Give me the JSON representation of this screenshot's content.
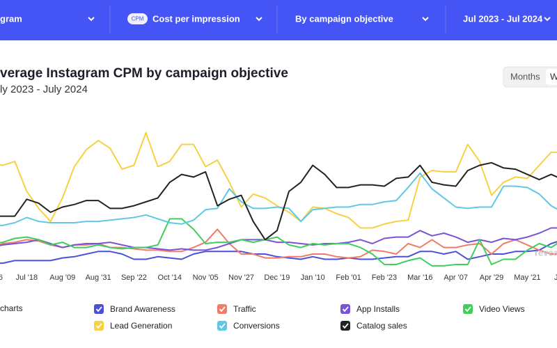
{
  "header": {
    "dropdowns": [
      {
        "label": "gram"
      },
      {
        "badge": "CPM",
        "label": "Cost per impression"
      },
      {
        "label": "By campaign objective"
      },
      {
        "label": "Jul 2023 - Jul 2024"
      }
    ]
  },
  "view_toggle": [
    "Months",
    "W"
  ],
  "legend_toggle_all": "charts",
  "watermark": "revea",
  "chart_data": {
    "type": "line",
    "title": "verage Instagram CPM by campaign objective",
    "subtitle": "ly 2023 - July 2024",
    "categories": [
      "6",
      null,
      null,
      "Jul '18",
      null,
      null,
      "Aug '09",
      null,
      null,
      "Aug '31",
      null,
      null,
      "Sep '22",
      null,
      null,
      "Oct '14",
      null,
      null,
      "Nov '05",
      null,
      null,
      "Nov '27",
      null,
      null,
      "Dec '19",
      null,
      null,
      "Jan '10",
      null,
      null,
      "Feb '01",
      null,
      null,
      "Feb '23",
      null,
      null,
      "Mar '16",
      null,
      null,
      "Apr '07",
      null,
      null,
      "Apr '29",
      null,
      null,
      "May '21",
      null,
      null,
      "Ju"
    ],
    "ylim": [
      0,
      12
    ],
    "series": [
      {
        "name": "Brand Awareness",
        "color": "#4b50d8",
        "values": [
          0.9,
          0.9,
          1.1,
          1.1,
          1.1,
          1.1,
          1.3,
          1.4,
          1.6,
          1.8,
          1.8,
          1.6,
          1.2,
          1.2,
          1.4,
          1.3,
          1.2,
          1.6,
          1.8,
          1.8,
          1.8,
          1.8,
          1.6,
          1.6,
          1.4,
          1.3,
          1.2,
          1.4,
          1.2,
          1.2,
          1.3,
          1.2,
          1.2,
          1.3,
          1.4,
          1.4,
          1.8,
          1.8,
          1.6,
          1.8,
          1.2,
          1.4,
          1.6,
          1.6,
          1.8,
          1.8,
          1.9,
          2.4,
          2.7
        ]
      },
      {
        "name": "Traffic",
        "color": "#f07b6b",
        "values": [
          2.1,
          2.4,
          2.5,
          2.7,
          2.6,
          2.3,
          2.1,
          2.3,
          2.3,
          2.4,
          2.1,
          2.1,
          2.0,
          1.9,
          1.9,
          1.8,
          1.8,
          2.1,
          2.5,
          3.5,
          2.4,
          1.6,
          1.6,
          1.3,
          1.3,
          1.4,
          1.4,
          1.6,
          1.6,
          1.4,
          1.3,
          1.4,
          1.9,
          1.8,
          1.6,
          2.4,
          2.1,
          2.7,
          2.1,
          2.1,
          2.3,
          2.4,
          1.6,
          2.4,
          2.7,
          2.3,
          1.9,
          1.6,
          1.6
        ]
      },
      {
        "name": "App Installs",
        "color": "#7a52d8",
        "values": [
          2.1,
          2.3,
          2.4,
          2.5,
          2.7,
          2.4,
          2.1,
          2.3,
          2.4,
          2.4,
          2.5,
          2.3,
          2.1,
          2.1,
          2.0,
          1.9,
          2.0,
          1.9,
          1.9,
          2.1,
          2.4,
          2.7,
          2.7,
          2.7,
          2.5,
          2.5,
          2.4,
          2.3,
          2.4,
          2.4,
          2.5,
          2.7,
          2.4,
          2.8,
          2.9,
          2.9,
          3.4,
          3.0,
          3.2,
          2.9,
          2.5,
          2.7,
          2.5,
          2.8,
          2.7,
          2.9,
          3.2,
          3.6,
          3.6
        ]
      },
      {
        "name": "Video Views",
        "color": "#3fcf5b",
        "values": [
          2.4,
          2.5,
          2.8,
          2.9,
          2.7,
          2.3,
          2.5,
          2.1,
          2.1,
          2.3,
          2.1,
          2.0,
          2.1,
          2.1,
          2.3,
          4.3,
          4.3,
          3.5,
          2.4,
          2.5,
          2.5,
          2.7,
          2.5,
          2.7,
          2.9,
          2.3,
          2.1,
          2.4,
          2.3,
          2.4,
          2.4,
          2.1,
          1.6,
          0.8,
          0.8,
          1.1,
          1.3,
          0.7,
          0.7,
          0.8,
          0.8,
          2.7,
          0.8,
          1.2,
          1.2,
          1.9,
          2.4,
          2.1,
          2.7
        ]
      },
      {
        "name": "Lead Generation",
        "color": "#f6d142",
        "values": [
          8.5,
          8.4,
          8.7,
          6.4,
          5.1,
          4.1,
          5.9,
          8.3,
          9.6,
          10.3,
          9.7,
          8.1,
          8.4,
          10.9,
          8.3,
          8.7,
          10.0,
          10.0,
          8.3,
          8.8,
          7.1,
          5.2,
          6.2,
          5.9,
          5.3,
          4.8,
          4.1,
          5.2,
          5.1,
          4.7,
          4.4,
          3.6,
          3.6,
          3.9,
          4.1,
          4.2,
          7.5,
          8.0,
          7.9,
          7.9,
          10.0,
          8.7,
          6.1,
          7.1,
          7.5,
          7.4,
          8.4,
          9.4,
          9.4
        ]
      },
      {
        "name": "Conversions",
        "color": "#5fc8e6",
        "values": [
          3.8,
          3.8,
          4.0,
          4.4,
          4.1,
          4.0,
          4.0,
          4.0,
          4.1,
          4.1,
          4.2,
          4.3,
          4.4,
          4.6,
          4.3,
          4.0,
          3.9,
          4.2,
          5.0,
          5.1,
          6.6,
          5.6,
          5.1,
          5.1,
          5.2,
          5.1,
          4.1,
          5.0,
          5.1,
          5.2,
          5.2,
          5.4,
          5.4,
          5.6,
          5.7,
          6.7,
          7.8,
          6.6,
          5.9,
          5.2,
          5.1,
          5.2,
          5.2,
          6.8,
          6.8,
          6.7,
          6.2,
          5.3,
          4.8
        ]
      },
      {
        "name": "Catalog sales",
        "color": "#222222",
        "values": [
          4.5,
          4.5,
          4.5,
          5.8,
          5.5,
          4.8,
          5.2,
          5.4,
          5.7,
          5.7,
          5.1,
          5.1,
          5.3,
          5.6,
          5.9,
          7.1,
          7.7,
          7.5,
          7.9,
          5.3,
          5.8,
          6.1,
          4.1,
          2.7,
          3.4,
          6.4,
          7.1,
          8.4,
          7.7,
          6.7,
          6.7,
          6.9,
          6.9,
          6.8,
          7.4,
          7.5,
          8.4,
          7.1,
          6.9,
          6.8,
          8.0,
          8.4,
          8.6,
          8.2,
          8.1,
          7.7,
          7.3,
          7.7,
          7.3
        ]
      }
    ]
  }
}
